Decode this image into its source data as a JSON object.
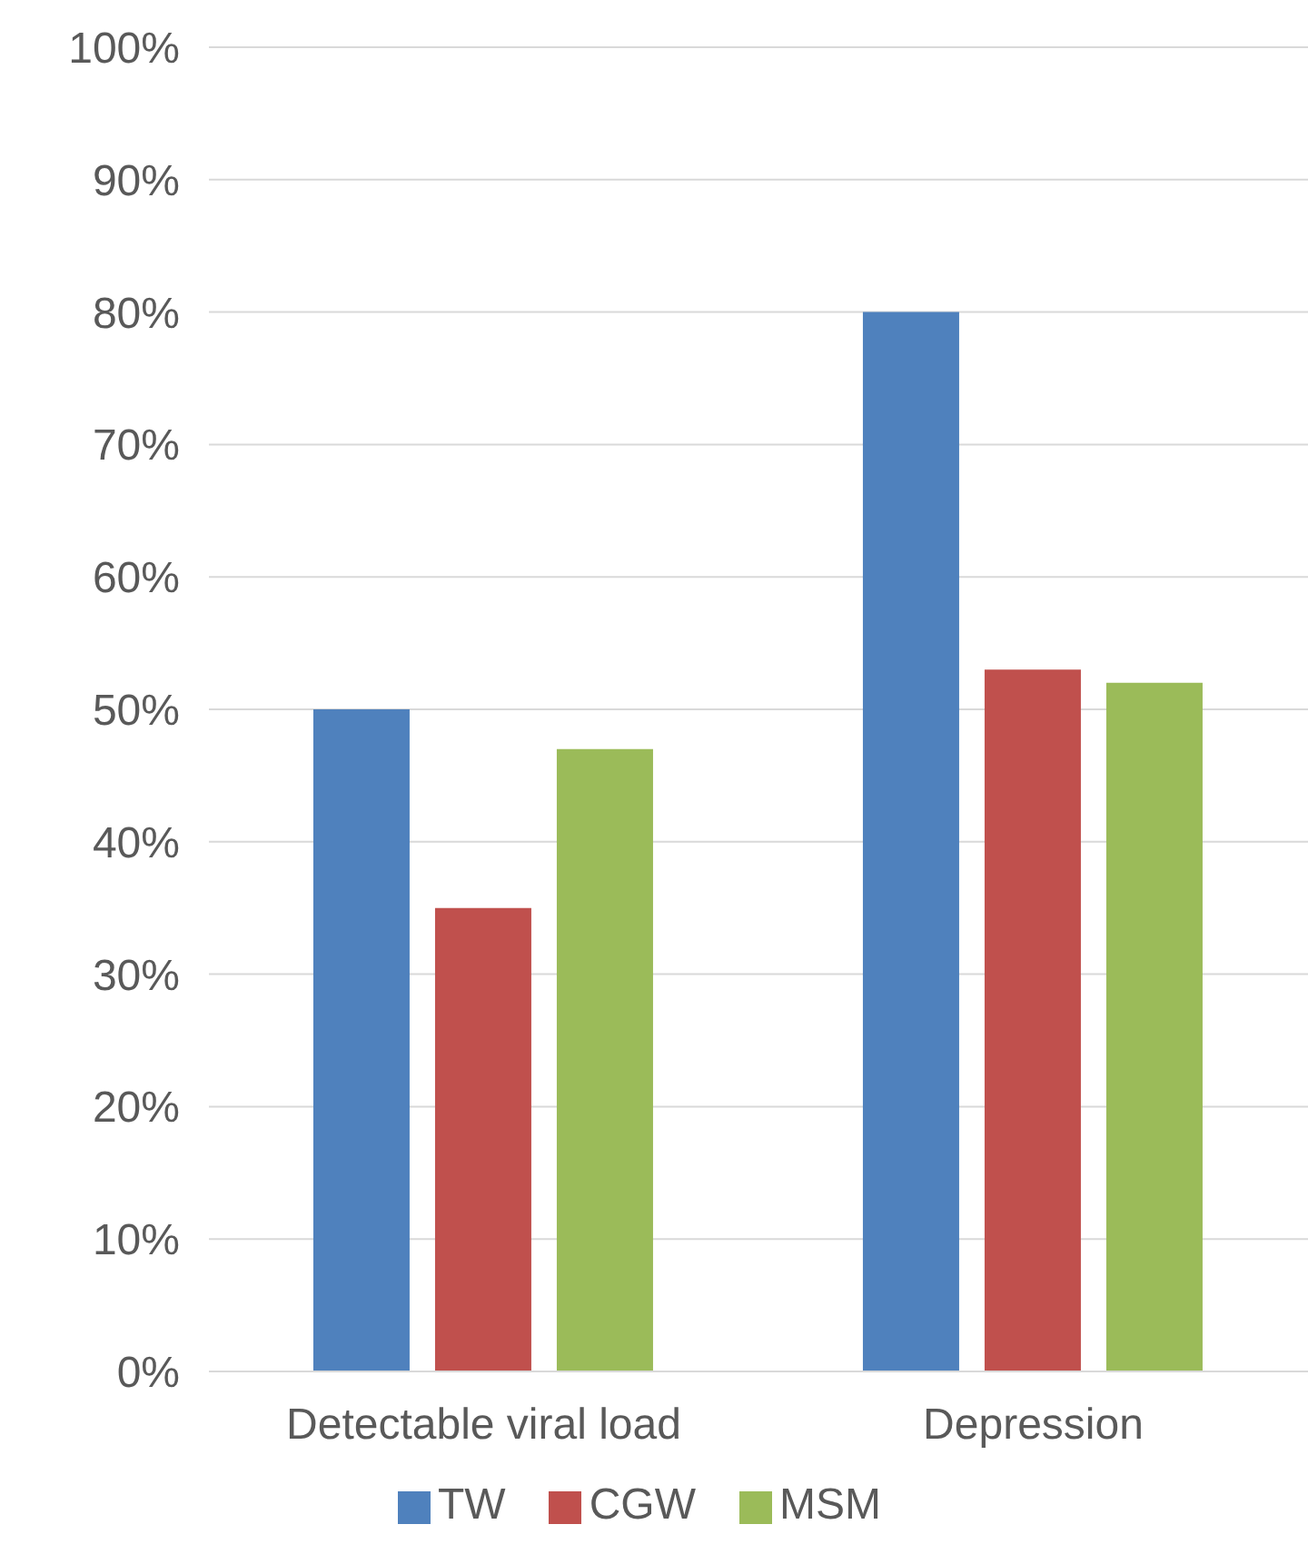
{
  "chart_data": {
    "type": "bar",
    "categories": [
      "Detectable viral load",
      "Depression"
    ],
    "series": [
      {
        "name": "TW",
        "color": "#4f81bd",
        "values": [
          50,
          80
        ]
      },
      {
        "name": "CGW",
        "color": "#c0504d",
        "values": [
          35,
          53
        ]
      },
      {
        "name": "MSM",
        "color": "#9bbb59",
        "values": [
          47,
          52
        ]
      }
    ],
    "ylim": [
      0,
      100
    ],
    "yticks": [
      {
        "value": 0,
        "label": "0%"
      },
      {
        "value": 10,
        "label": "10%"
      },
      {
        "value": 20,
        "label": "20%"
      },
      {
        "value": 30,
        "label": "30%"
      },
      {
        "value": 40,
        "label": "40%"
      },
      {
        "value": 50,
        "label": "50%"
      },
      {
        "value": 60,
        "label": "60%"
      },
      {
        "value": 70,
        "label": "70%"
      },
      {
        "value": 80,
        "label": "80%"
      },
      {
        "value": 90,
        "label": "90%"
      },
      {
        "value": 100,
        "label": "100%"
      }
    ],
    "grid": "y",
    "legend": "bottom"
  }
}
